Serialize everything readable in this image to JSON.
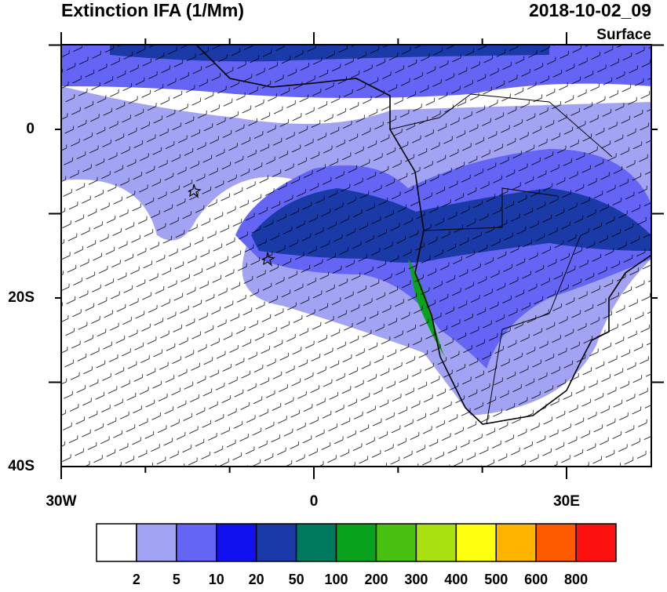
{
  "header": {
    "title": "Extinction IFA (1/Mm)",
    "time": "2018-10-02_09",
    "level": "Surface"
  },
  "axes": {
    "lat_labels": [
      "0",
      "20S",
      "40S"
    ],
    "lon_labels": [
      "30W",
      "0",
      "30E"
    ]
  },
  "colorbar": {
    "labels": [
      2,
      5,
      10,
      20,
      50,
      100,
      200,
      300,
      400,
      500,
      600,
      800
    ],
    "colors": [
      "#ffffff",
      "#a3a3f3",
      "#6464f5",
      "#1010f0",
      "#1a3aa8",
      "#007a5e",
      "#08a21c",
      "#48c010",
      "#a8e010",
      "#ffff10",
      "#ffb400",
      "#ff5a00",
      "#ff1010"
    ]
  }
}
